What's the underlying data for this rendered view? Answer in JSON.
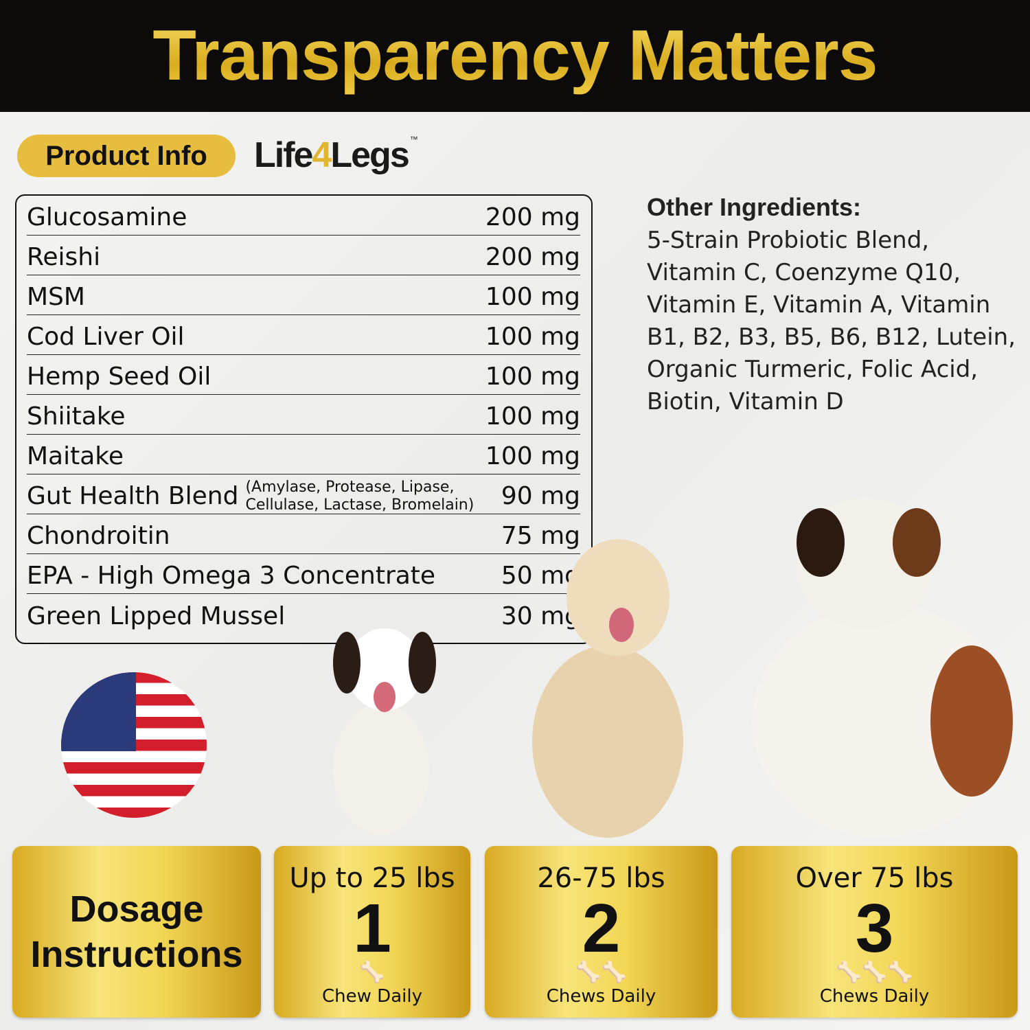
{
  "header": {
    "title": "Transparency Matters"
  },
  "product_info_label": "Product Info",
  "logo": {
    "text_before": "Life",
    "text_four": "4",
    "text_after": "Legs",
    "tm": "™"
  },
  "ingredients": [
    {
      "name": "Glucosamine",
      "amount": "200 mg"
    },
    {
      "name": "Reishi",
      "amount": "200 mg"
    },
    {
      "name": "MSM",
      "amount": "100 mg"
    },
    {
      "name": "Cod Liver Oil",
      "amount": "100 mg"
    },
    {
      "name": "Hemp Seed Oil",
      "amount": "100 mg"
    },
    {
      "name": "Shiitake",
      "amount": "100 mg"
    },
    {
      "name": "Maitake",
      "amount": "100 mg"
    },
    {
      "name": "Gut Health Blend",
      "note1": "(Amylase, Protease, Lipase,",
      "note2": "Cellulase, Lactase, Bromelain)",
      "amount": "90 mg"
    },
    {
      "name": "Chondroitin",
      "amount": "75 mg"
    },
    {
      "name": "EPA - High Omega 3 Concentrate",
      "amount": "50 mg"
    },
    {
      "name": "Green Lipped Mussel",
      "amount": "30 mg"
    }
  ],
  "other_ingredients": {
    "heading": "Other Ingredients",
    "text": "5-Strain Probiotic Blend, Vitamin C, Coenzyme Q10, Vitamin E, Vitamin A, Vitamin B1, B2, B3, B5, B6, B12, Lutein, Organic Turmeric, Folic Acid, Biotin, Vitamin D"
  },
  "dosage": {
    "title_line1": "Dosage",
    "title_line2": "Instructions",
    "tiers": [
      {
        "weight": "Up to 25 lbs",
        "count": "1",
        "bones": "🦴",
        "label": "Chew Daily"
      },
      {
        "weight": "26-75 lbs",
        "count": "2",
        "bones": "🦴🦴",
        "label": "Chews Daily"
      },
      {
        "weight": "Over 75 lbs",
        "count": "3",
        "bones": "🦴🦴🦴",
        "label": "Chews Daily"
      }
    ]
  },
  "colors": {
    "gold": "#e6bd3f",
    "header_bg": "#0c0b0a"
  }
}
